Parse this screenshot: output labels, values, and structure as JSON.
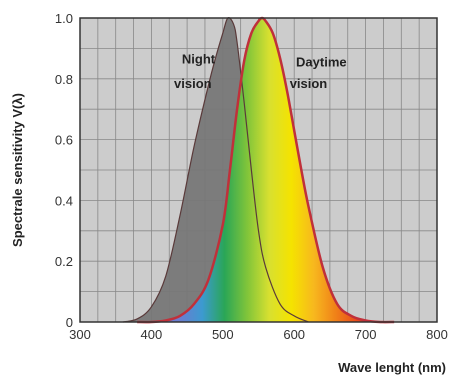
{
  "chart_data": {
    "type": "area",
    "title": "",
    "xlabel": "Wave lenght (nm)",
    "ylabel": "Spectrale sensitivity V(λ)",
    "xlim": [
      300,
      800
    ],
    "ylim": [
      0,
      1.0
    ],
    "x_ticks": [
      300,
      400,
      500,
      600,
      700,
      800
    ],
    "x_tick_labels": [
      "300",
      "400",
      "500",
      "600",
      "700",
      "800"
    ],
    "y_ticks": [
      0,
      0.2,
      0.4,
      0.6,
      0.8,
      1.0
    ],
    "y_tick_labels": [
      "0",
      "0.2",
      "0.4",
      "0.6",
      "0.8",
      "1.0"
    ],
    "grid": true,
    "series": [
      {
        "name": "",
        "color": "#777777",
        "x": [
          360,
          380,
          400,
          420,
          440,
          460,
          480,
          490,
          500,
          507,
          515,
          520,
          530,
          540,
          550,
          560,
          580,
          600,
          620
        ],
        "y": [
          0.0,
          0.01,
          0.05,
          0.15,
          0.35,
          0.58,
          0.78,
          0.87,
          0.95,
          1.0,
          0.98,
          0.92,
          0.72,
          0.5,
          0.3,
          0.18,
          0.06,
          0.02,
          0.0
        ]
      },
      {
        "name": "",
        "color": "#c0303a",
        "x": [
          380,
          400,
          420,
          440,
          460,
          480,
          500,
          510,
          520,
          530,
          540,
          550,
          555,
          560,
          570,
          580,
          590,
          600,
          610,
          620,
          640,
          660,
          680,
          700,
          720,
          740
        ],
        "y": [
          0.0,
          0.0,
          0.005,
          0.02,
          0.06,
          0.14,
          0.32,
          0.5,
          0.7,
          0.86,
          0.95,
          0.99,
          1.0,
          0.99,
          0.95,
          0.87,
          0.76,
          0.63,
          0.5,
          0.38,
          0.18,
          0.06,
          0.02,
          0.005,
          0.0,
          0.0
        ]
      }
    ],
    "annotations": [
      {
        "text": "Night",
        "x": 466,
        "y": 0.85
      },
      {
        "text": "vision",
        "x": 458,
        "y": 0.77
      },
      {
        "text": "Daytime",
        "x": 638,
        "y": 0.84
      },
      {
        "text": "vision",
        "x": 620,
        "y": 0.77
      }
    ],
    "colors": {
      "background": "#cccccc",
      "grid": "#888888",
      "spectrum": [
        "#6a7dd0",
        "#3c9ad0",
        "#2aa656",
        "#7fc43a",
        "#d8e030",
        "#f5e300",
        "#f7b81e",
        "#f08018",
        "#e8461c"
      ]
    }
  }
}
